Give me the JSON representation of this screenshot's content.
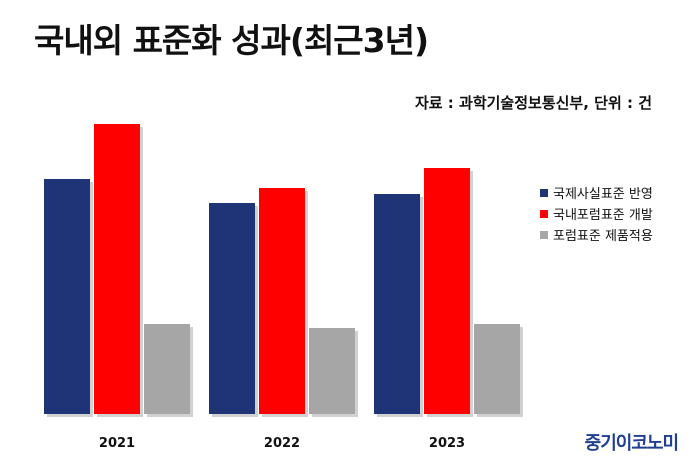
{
  "header": {
    "title": "국내외 표준화 성과(최근3년)",
    "source": "자료 : 과학기술정보통신부, 단위 : 건"
  },
  "chart_data": {
    "type": "bar",
    "categories": [
      "2021",
      "2022",
      "2023"
    ],
    "series": [
      {
        "name": "국제사실표준 반영",
        "color": "#1f3477",
        "values": [
          235,
          211,
          220
        ]
      },
      {
        "name": "국내포럼표준 개발",
        "color": "#ff0000",
        "values": [
          290,
          226,
          246
        ]
      },
      {
        "name": "포럼표준 제품적용",
        "color": "#a6a6a6",
        "values": [
          90,
          86,
          90
        ]
      }
    ],
    "ylim": [
      0,
      300
    ],
    "grid": false,
    "legend": "right",
    "title": "국내외 표준화 성과(최근3년)",
    "xlabel": "",
    "ylabel": ""
  },
  "watermark": "중기이코노미"
}
